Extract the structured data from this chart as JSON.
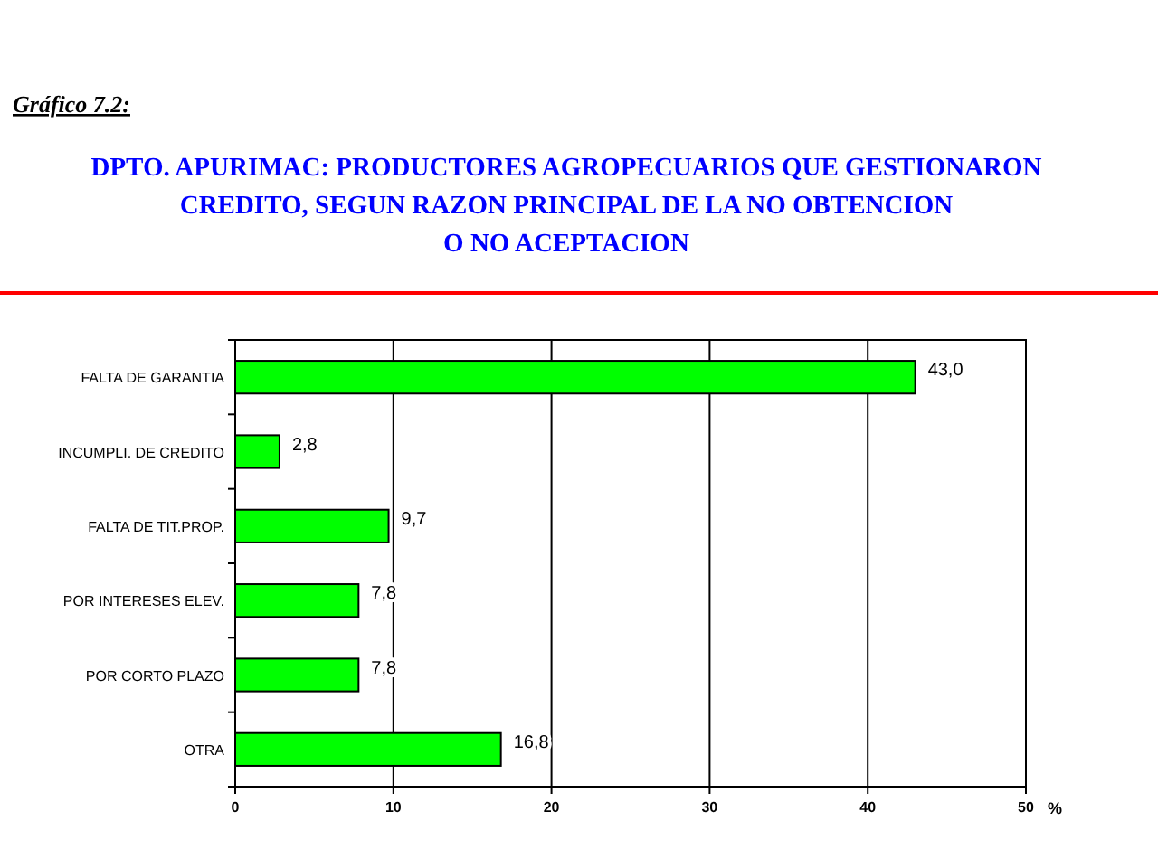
{
  "chart_data": {
    "type": "bar",
    "orientation": "horizontal",
    "title": "DPTO. APURIMAC: PRODUCTORES AGROPECUARIOS QUE GESTIONARON\nCREDITO, SEGUN RAZON PRINCIPAL DE LA NO OBTENCION\nO NO ACEPTACION",
    "annotations": [
      "Gráfico 7.2:"
    ],
    "xlabel": "%",
    "categories": [
      "FALTA DE GARANTIA",
      "INCUMPLI. DE CREDITO",
      "FALTA DE TIT.PROP.",
      "POR INTERESES ELEV.",
      "POR CORTO PLAZO",
      "OTRA"
    ],
    "values": [
      43.0,
      2.8,
      9.7,
      7.8,
      7.8,
      16.8
    ],
    "color": "#00ff00",
    "value_labels": [
      "43,0",
      "2,8",
      "9,7",
      "7,8",
      "7,8",
      "16,8"
    ],
    "xlim": [
      0,
      50
    ],
    "xticks": [
      0,
      10,
      20,
      30,
      40,
      50
    ],
    "grid": "x"
  }
}
